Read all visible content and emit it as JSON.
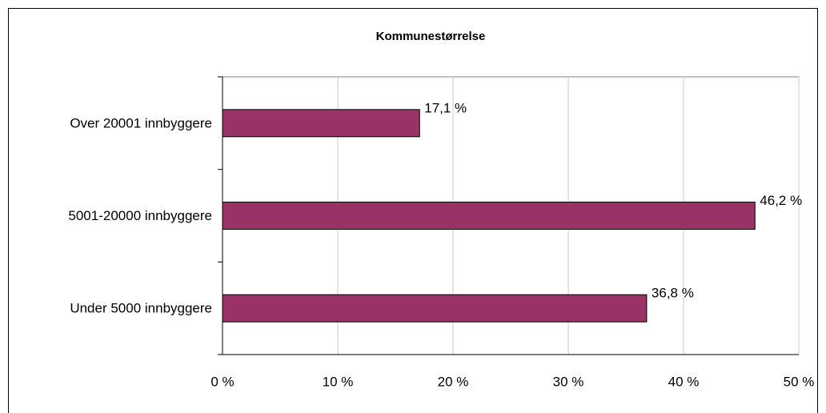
{
  "chart_data": {
    "type": "barh",
    "title": "Kommunestørrelse",
    "categories": [
      "Over 20001 innbyggere",
      "5001-20000 innbyggere",
      "Under 5000 innbyggere"
    ],
    "values": [
      17.1,
      46.2,
      36.8
    ],
    "value_labels": [
      "17,1 %",
      "46,2 %",
      "36,8 %"
    ],
    "color": "#993366",
    "xlim": [
      0,
      50
    ],
    "xticks": [
      {
        "value": 0,
        "label": "0 %"
      },
      {
        "value": 10,
        "label": "10 %"
      },
      {
        "value": 20,
        "label": "20 %"
      },
      {
        "value": 30,
        "label": "30 %"
      },
      {
        "value": 40,
        "label": "40 %"
      },
      {
        "value": 50,
        "label": "50 %"
      }
    ],
    "grid": true
  }
}
